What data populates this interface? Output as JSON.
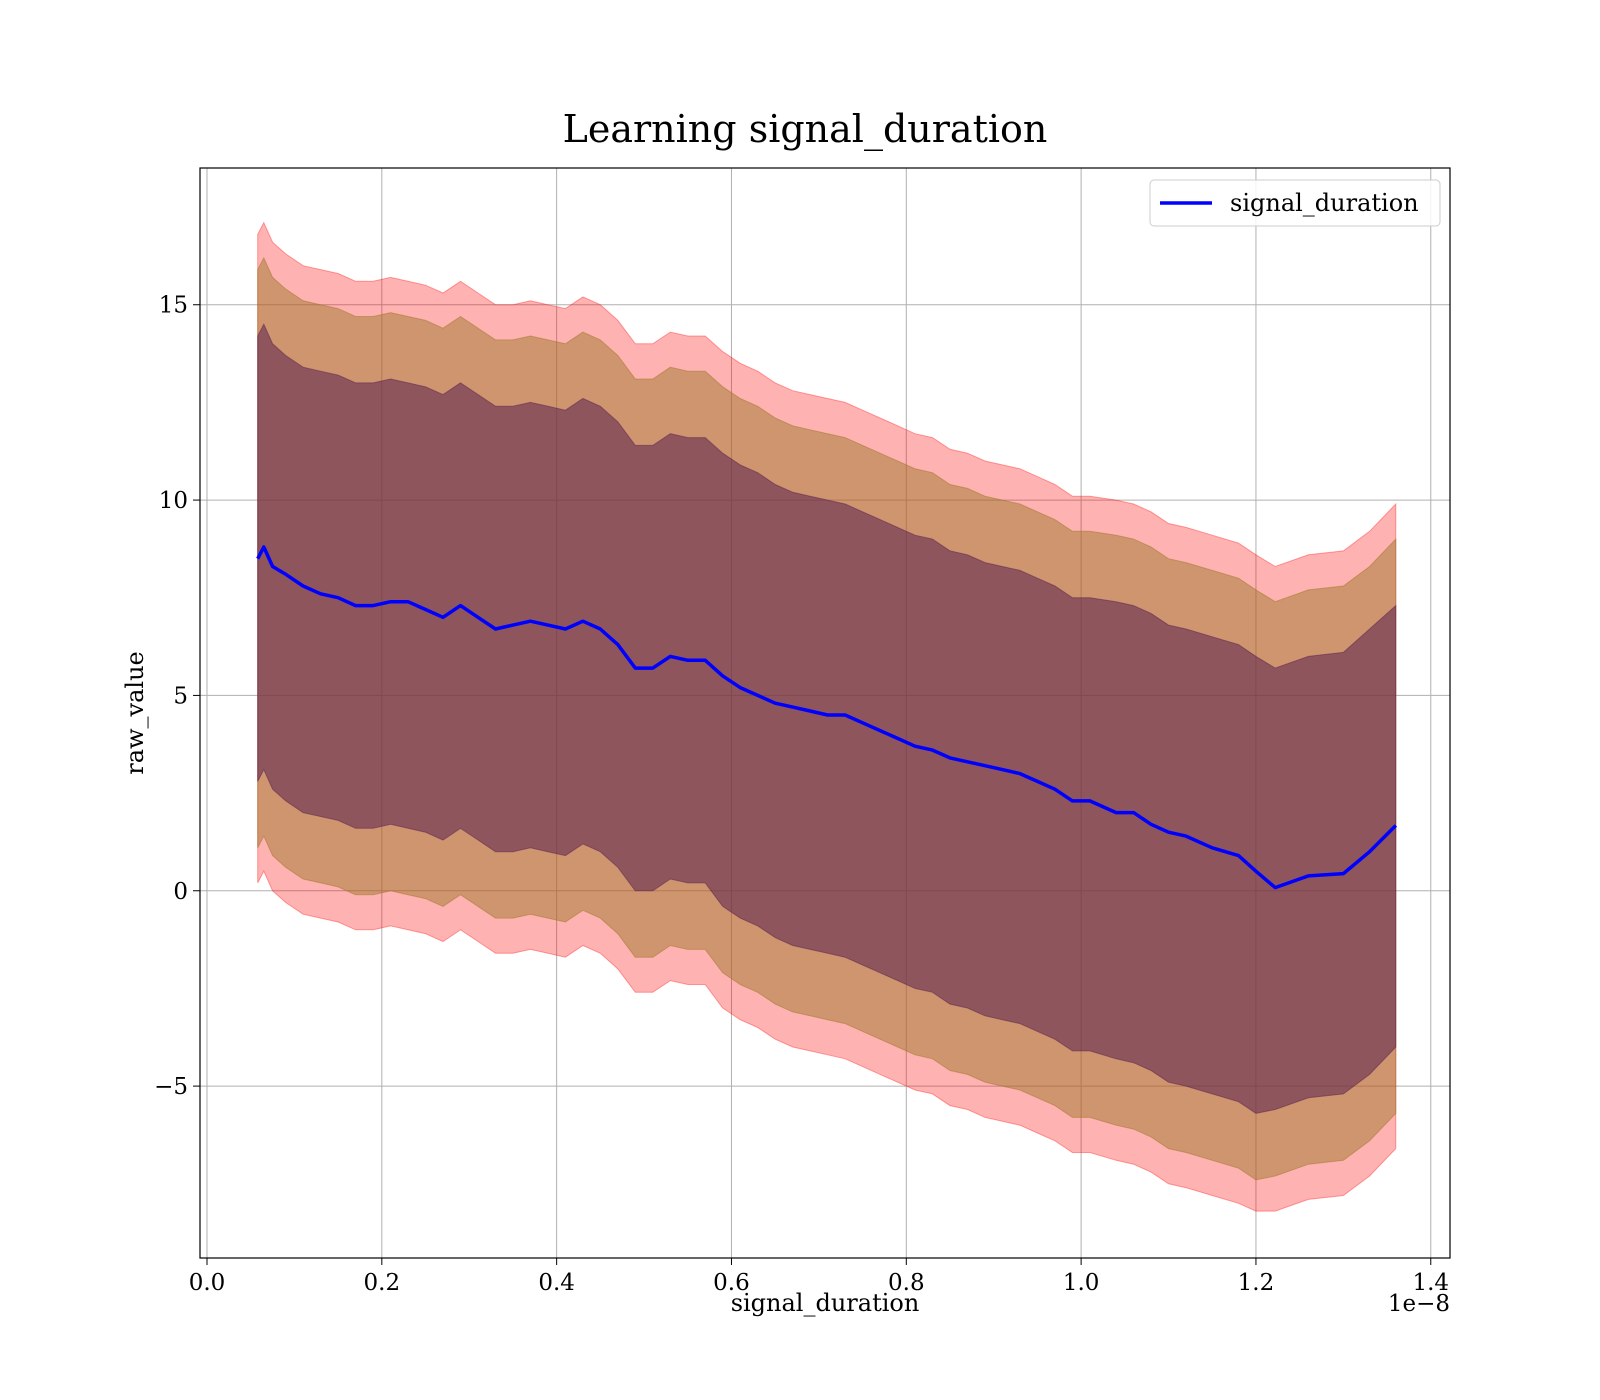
{
  "chart_data": {
    "type": "area",
    "title": "Learning signal_duration",
    "xlabel": "signal_duration",
    "ylabel": "raw_value",
    "x_offset_label": "1e−8",
    "xlim": [
      -0.008,
      1.422
    ],
    "ylim": [
      -9.4,
      18.5
    ],
    "x_scale_factor": 1e-08,
    "x_ticks": [
      0.0,
      0.2,
      0.4,
      0.6,
      0.8,
      1.0,
      1.2,
      1.4
    ],
    "x_tick_labels": [
      "0.0",
      "0.2",
      "0.4",
      "0.6",
      "0.8",
      "1.0",
      "1.2",
      "1.4"
    ],
    "y_ticks": [
      15,
      10,
      5,
      0,
      -5
    ],
    "y_tick_labels": [
      "15",
      "10",
      "5",
      "0",
      "−5"
    ],
    "grid": true,
    "legend": {
      "position": "top-right",
      "entries": [
        "signal_duration"
      ]
    },
    "colors": {
      "line": "#0000ff",
      "band_outer": "#ff0000",
      "band_middle": "#a0782a",
      "band_inner": "#5a2050",
      "grid": "#b0b0b0"
    },
    "x": [
      0.058,
      0.065,
      0.075,
      0.09,
      0.11,
      0.13,
      0.15,
      0.17,
      0.19,
      0.21,
      0.23,
      0.25,
      0.27,
      0.29,
      0.31,
      0.33,
      0.35,
      0.37,
      0.39,
      0.41,
      0.43,
      0.45,
      0.47,
      0.49,
      0.51,
      0.53,
      0.55,
      0.57,
      0.59,
      0.61,
      0.63,
      0.65,
      0.67,
      0.69,
      0.71,
      0.73,
      0.75,
      0.77,
      0.79,
      0.81,
      0.83,
      0.85,
      0.87,
      0.89,
      0.91,
      0.93,
      0.95,
      0.97,
      0.99,
      1.01,
      1.04,
      1.06,
      1.08,
      1.1,
      1.12,
      1.15,
      1.18,
      1.2,
      1.222,
      1.26,
      1.3,
      1.33,
      1.36
    ],
    "mean": [
      8.5,
      8.8,
      8.3,
      8.1,
      7.8,
      7.6,
      7.5,
      7.3,
      7.3,
      7.4,
      7.4,
      7.2,
      7.0,
      7.3,
      7.0,
      6.7,
      6.8,
      6.9,
      6.8,
      6.7,
      6.9,
      6.7,
      6.3,
      5.7,
      5.7,
      6.0,
      5.9,
      5.9,
      5.5,
      5.2,
      5.0,
      4.8,
      4.7,
      4.6,
      4.5,
      4.5,
      4.3,
      4.1,
      3.9,
      3.7,
      3.6,
      3.4,
      3.3,
      3.2,
      3.1,
      3.0,
      2.8,
      2.6,
      2.3,
      2.3,
      2.0,
      2.0,
      1.7,
      1.5,
      1.4,
      1.1,
      0.9,
      0.5,
      0.08,
      0.38,
      0.44,
      1.0,
      1.67
    ],
    "series": [
      {
        "key": "outer_upper",
        "values": [
          16.8,
          17.1,
          16.6,
          16.3,
          16.0,
          15.9,
          15.8,
          15.6,
          15.6,
          15.7,
          15.6,
          15.5,
          15.3,
          15.6,
          15.3,
          15.0,
          15.0,
          15.1,
          15.0,
          14.9,
          15.2,
          15.0,
          14.6,
          14.0,
          14.0,
          14.3,
          14.2,
          14.2,
          13.8,
          13.5,
          13.3,
          13.0,
          12.8,
          12.7,
          12.6,
          12.5,
          12.3,
          12.1,
          11.9,
          11.7,
          11.6,
          11.3,
          11.2,
          11.0,
          10.9,
          10.8,
          10.6,
          10.4,
          10.1,
          10.1,
          10.0,
          9.9,
          9.7,
          9.4,
          9.3,
          9.1,
          8.9,
          8.6,
          8.3,
          8.6,
          8.7,
          9.2,
          9.9
        ]
      },
      {
        "key": "middle_upper",
        "values": [
          15.9,
          16.2,
          15.7,
          15.4,
          15.1,
          15.0,
          14.9,
          14.7,
          14.7,
          14.8,
          14.7,
          14.6,
          14.4,
          14.7,
          14.4,
          14.1,
          14.1,
          14.2,
          14.1,
          14.0,
          14.3,
          14.1,
          13.7,
          13.1,
          13.1,
          13.4,
          13.3,
          13.3,
          12.9,
          12.6,
          12.4,
          12.1,
          11.9,
          11.8,
          11.7,
          11.6,
          11.4,
          11.2,
          11.0,
          10.8,
          10.7,
          10.4,
          10.3,
          10.1,
          10.0,
          9.9,
          9.7,
          9.5,
          9.2,
          9.2,
          9.1,
          9.0,
          8.8,
          8.5,
          8.4,
          8.2,
          8.0,
          7.7,
          7.4,
          7.7,
          7.8,
          8.3,
          9.0
        ]
      },
      {
        "key": "inner_upper",
        "values": [
          14.2,
          14.5,
          14.0,
          13.7,
          13.4,
          13.3,
          13.2,
          13.0,
          13.0,
          13.1,
          13.0,
          12.9,
          12.7,
          13.0,
          12.7,
          12.4,
          12.4,
          12.5,
          12.4,
          12.3,
          12.6,
          12.4,
          12.0,
          11.4,
          11.4,
          11.7,
          11.6,
          11.6,
          11.2,
          10.9,
          10.7,
          10.4,
          10.2,
          10.1,
          10.0,
          9.9,
          9.7,
          9.5,
          9.3,
          9.1,
          9.0,
          8.7,
          8.6,
          8.4,
          8.3,
          8.2,
          8.0,
          7.8,
          7.5,
          7.5,
          7.4,
          7.3,
          7.1,
          6.8,
          6.7,
          6.5,
          6.3,
          6.0,
          5.7,
          6.0,
          6.1,
          6.7,
          7.3
        ]
      },
      {
        "key": "inner_lower",
        "values": [
          2.8,
          3.1,
          2.6,
          2.3,
          2.0,
          1.9,
          1.8,
          1.6,
          1.6,
          1.7,
          1.6,
          1.5,
          1.3,
          1.6,
          1.3,
          1.0,
          1.0,
          1.1,
          1.0,
          0.9,
          1.2,
          1.0,
          0.6,
          0.0,
          0.0,
          0.3,
          0.2,
          0.2,
          -0.4,
          -0.7,
          -0.9,
          -1.2,
          -1.4,
          -1.5,
          -1.6,
          -1.7,
          -1.9,
          -2.1,
          -2.3,
          -2.5,
          -2.6,
          -2.9,
          -3.0,
          -3.2,
          -3.3,
          -3.4,
          -3.6,
          -3.8,
          -4.1,
          -4.1,
          -4.3,
          -4.4,
          -4.6,
          -4.9,
          -5.0,
          -5.2,
          -5.4,
          -5.7,
          -5.6,
          -5.3,
          -5.2,
          -4.7,
          -4.0
        ]
      },
      {
        "key": "middle_lower",
        "values": [
          1.1,
          1.4,
          0.9,
          0.6,
          0.3,
          0.2,
          0.1,
          -0.1,
          -0.1,
          0.0,
          -0.1,
          -0.2,
          -0.4,
          -0.1,
          -0.4,
          -0.7,
          -0.7,
          -0.6,
          -0.7,
          -0.8,
          -0.5,
          -0.7,
          -1.1,
          -1.7,
          -1.7,
          -1.4,
          -1.5,
          -1.5,
          -2.1,
          -2.4,
          -2.6,
          -2.9,
          -3.1,
          -3.2,
          -3.3,
          -3.4,
          -3.6,
          -3.8,
          -4.0,
          -4.2,
          -4.3,
          -4.6,
          -4.7,
          -4.9,
          -5.0,
          -5.1,
          -5.3,
          -5.5,
          -5.8,
          -5.8,
          -6.0,
          -6.1,
          -6.3,
          -6.6,
          -6.7,
          -6.9,
          -7.1,
          -7.4,
          -7.3,
          -7.0,
          -6.9,
          -6.4,
          -5.7
        ]
      },
      {
        "key": "outer_lower",
        "values": [
          0.2,
          0.5,
          0.0,
          -0.3,
          -0.6,
          -0.7,
          -0.8,
          -1.0,
          -1.0,
          -0.9,
          -1.0,
          -1.1,
          -1.3,
          -1.0,
          -1.3,
          -1.6,
          -1.6,
          -1.5,
          -1.6,
          -1.7,
          -1.4,
          -1.6,
          -2.0,
          -2.6,
          -2.6,
          -2.3,
          -2.4,
          -2.4,
          -3.0,
          -3.3,
          -3.5,
          -3.8,
          -4.0,
          -4.1,
          -4.2,
          -4.3,
          -4.5,
          -4.7,
          -4.9,
          -5.1,
          -5.2,
          -5.5,
          -5.6,
          -5.8,
          -5.9,
          -6.0,
          -6.2,
          -6.4,
          -6.7,
          -6.7,
          -6.9,
          -7.0,
          -7.2,
          -7.5,
          -7.6,
          -7.8,
          -8.0,
          -8.2,
          -8.2,
          -7.9,
          -7.8,
          -7.3,
          -6.6
        ]
      }
    ]
  }
}
